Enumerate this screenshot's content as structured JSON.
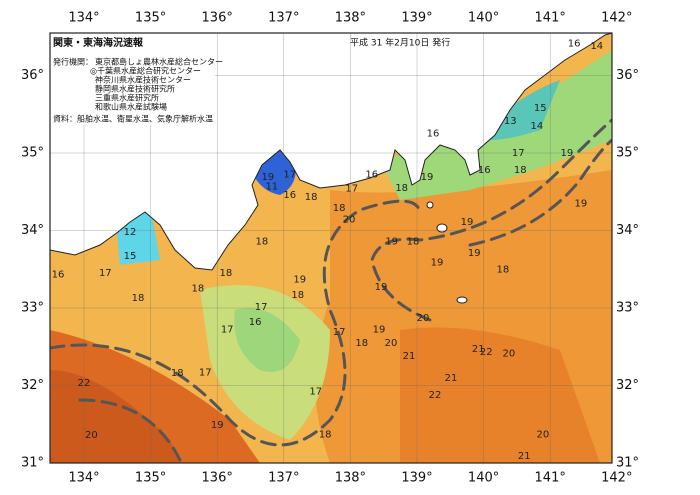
{
  "header": {
    "title": "関東・東海海況速報",
    "issued": "平成 31 年2月10日 発行",
    "publisher_label": "発行機関：",
    "publishers": [
      "東京都島しょ農林水産総合センター",
      "◎千葉県水産総合研究センター",
      "神奈川県水産技術センター",
      "静岡県水産技術研究所",
      "三重県水産研究所",
      "和歌山県水産試験場"
    ],
    "sources": "資料：船舶水温、衛星水温、気象庁解析水温"
  },
  "map": {
    "lon_ticks": [
      {
        "value": 134,
        "label": "134°"
      },
      {
        "value": 135,
        "label": "135°"
      },
      {
        "value": 136,
        "label": "136°"
      },
      {
        "value": 137,
        "label": "137°"
      },
      {
        "value": 138,
        "label": "138°"
      },
      {
        "value": 139,
        "label": "139°"
      },
      {
        "value": 140,
        "label": "140°"
      },
      {
        "value": 141,
        "label": "141°"
      },
      {
        "value": 142,
        "label": "142°"
      }
    ],
    "lat_ticks": [
      {
        "value": 31,
        "label": "31°"
      },
      {
        "value": 32,
        "label": "32°"
      },
      {
        "value": 33,
        "label": "33°"
      },
      {
        "value": 34,
        "label": "34°"
      },
      {
        "value": 35,
        "label": "35°"
      },
      {
        "value": 36,
        "label": "36°"
      }
    ],
    "temperature_labels": [
      {
        "lon": 141.36,
        "lat": 36.41,
        "value": 16
      },
      {
        "lon": 141.7,
        "lat": 36.38,
        "value": 14
      },
      {
        "lon": 140.85,
        "lat": 35.58,
        "value": 15
      },
      {
        "lon": 140.4,
        "lat": 35.41,
        "value": 13
      },
      {
        "lon": 140.8,
        "lat": 35.35,
        "value": 14
      },
      {
        "lon": 139.24,
        "lat": 35.25,
        "value": 16
      },
      {
        "lon": 140.52,
        "lat": 35.0,
        "value": 17
      },
      {
        "lon": 141.25,
        "lat": 35.0,
        "value": 19
      },
      {
        "lon": 138.32,
        "lat": 34.72,
        "value": 16
      },
      {
        "lon": 139.15,
        "lat": 34.69,
        "value": 19
      },
      {
        "lon": 138.77,
        "lat": 34.55,
        "value": 18
      },
      {
        "lon": 140.01,
        "lat": 34.78,
        "value": 16
      },
      {
        "lon": 140.55,
        "lat": 34.78,
        "value": 18
      },
      {
        "lon": 136.76,
        "lat": 34.69,
        "value": 19
      },
      {
        "lon": 137.09,
        "lat": 34.72,
        "value": 17
      },
      {
        "lon": 136.82,
        "lat": 34.57,
        "value": 11
      },
      {
        "lon": 137.09,
        "lat": 34.46,
        "value": 16
      },
      {
        "lon": 137.41,
        "lat": 34.43,
        "value": 18
      },
      {
        "lon": 138.02,
        "lat": 34.54,
        "value": 17
      },
      {
        "lon": 141.46,
        "lat": 34.35,
        "value": 19
      },
      {
        "lon": 139.75,
        "lat": 34.11,
        "value": 19
      },
      {
        "lon": 137.83,
        "lat": 34.29,
        "value": 18
      },
      {
        "lon": 137.98,
        "lat": 34.14,
        "value": 20
      },
      {
        "lon": 134.69,
        "lat": 33.98,
        "value": 12
      },
      {
        "lon": 134.69,
        "lat": 33.67,
        "value": 15
      },
      {
        "lon": 136.67,
        "lat": 33.86,
        "value": 18
      },
      {
        "lon": 138.62,
        "lat": 33.86,
        "value": 19
      },
      {
        "lon": 138.94,
        "lat": 33.86,
        "value": 18
      },
      {
        "lon": 139.86,
        "lat": 33.71,
        "value": 19
      },
      {
        "lon": 139.3,
        "lat": 33.59,
        "value": 19
      },
      {
        "lon": 133.61,
        "lat": 33.43,
        "value": 16
      },
      {
        "lon": 134.32,
        "lat": 33.45,
        "value": 17
      },
      {
        "lon": 136.13,
        "lat": 33.45,
        "value": 18
      },
      {
        "lon": 140.29,
        "lat": 33.5,
        "value": 18
      },
      {
        "lon": 137.24,
        "lat": 33.37,
        "value": 19
      },
      {
        "lon": 137.21,
        "lat": 33.17,
        "value": 18
      },
      {
        "lon": 135.71,
        "lat": 33.25,
        "value": 18
      },
      {
        "lon": 134.81,
        "lat": 33.13,
        "value": 18
      },
      {
        "lon": 138.46,
        "lat": 33.27,
        "value": 19
      },
      {
        "lon": 136.66,
        "lat": 33.01,
        "value": 17
      },
      {
        "lon": 136.57,
        "lat": 32.82,
        "value": 16
      },
      {
        "lon": 136.15,
        "lat": 32.72,
        "value": 17
      },
      {
        "lon": 137.83,
        "lat": 32.69,
        "value": 17
      },
      {
        "lon": 139.09,
        "lat": 32.87,
        "value": 20
      },
      {
        "lon": 138.43,
        "lat": 32.72,
        "value": 19
      },
      {
        "lon": 138.17,
        "lat": 32.55,
        "value": 18
      },
      {
        "lon": 138.61,
        "lat": 32.55,
        "value": 20
      },
      {
        "lon": 139.92,
        "lat": 32.47,
        "value": 21
      },
      {
        "lon": 140.04,
        "lat": 32.43,
        "value": 22
      },
      {
        "lon": 140.38,
        "lat": 32.41,
        "value": 20
      },
      {
        "lon": 138.88,
        "lat": 32.38,
        "value": 21
      },
      {
        "lon": 135.4,
        "lat": 32.16,
        "value": 18
      },
      {
        "lon": 135.82,
        "lat": 32.17,
        "value": 17
      },
      {
        "lon": 137.48,
        "lat": 31.92,
        "value": 17
      },
      {
        "lon": 139.51,
        "lat": 32.1,
        "value": 21
      },
      {
        "lon": 134.0,
        "lat": 32.03,
        "value": 22
      },
      {
        "lon": 136.0,
        "lat": 31.49,
        "value": 19
      },
      {
        "lon": 139.27,
        "lat": 31.88,
        "value": 22
      },
      {
        "lon": 137.62,
        "lat": 31.37,
        "value": 18
      },
      {
        "lon": 134.11,
        "lat": 31.36,
        "value": 20
      },
      {
        "lon": 140.89,
        "lat": 31.37,
        "value": 20
      },
      {
        "lon": 140.61,
        "lat": 31.09,
        "value": 21
      }
    ]
  }
}
